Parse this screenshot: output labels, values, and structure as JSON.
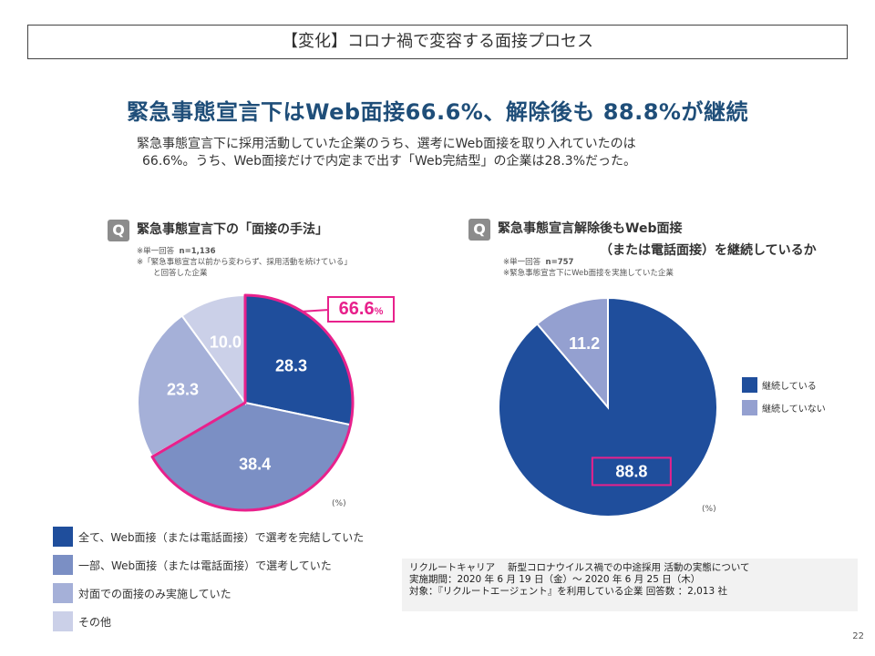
{
  "slide": {
    "title": "【変化】コロナ禍で変容する面接プロセス",
    "headline": "緊急事態宣言下はWeb面接66.6%、解除後も 88.8%が継続",
    "lead_line1": "緊急事態宣言下に採用活動していた企業のうち、選考にWeb面接を取り入れていたのは",
    "lead_line2": "66.6%。うち、Web面接だけで内定まで出す「Web完結型」の企業は28.3%だった。",
    "page_number": "22"
  },
  "left_panel": {
    "q_badge": "Q",
    "title": "緊急事態宣言下の「面接の手法」",
    "note_line1": "※単一回答",
    "note_n": "n=1,136",
    "note_line2": "※「緊急事態宣言以前から変わらず、採用活動を続けている」",
    "note_line3": "と回答した企業",
    "callout_value": "66.6",
    "callout_unit": "%",
    "unit": "(%)"
  },
  "right_panel": {
    "q_badge": "Q",
    "title_line1": "緊急事態宣言解除後もWeb面接",
    "title_line2": "（または電話面接）を継続しているか",
    "note_line1": "※単一回答",
    "note_n": "n=757",
    "note_line2": "※緊急事態宣言下にWeb面接を実施していた企業",
    "unit": "(%)"
  },
  "chart_data": [
    {
      "type": "pie",
      "title": "緊急事態宣言下の「面接の手法」",
      "slices": [
        {
          "label": "全て、Web面接（または電話面接）で選考を完結していた",
          "value": 28.3,
          "display": "28.3",
          "color": "#1f4e9c"
        },
        {
          "label": "一部、Web面接（または電話面接）で選考していた",
          "value": 38.4,
          "display": "38.4",
          "color": "#7b8fc4"
        },
        {
          "label": "対面での面接のみ実施していた",
          "value": 23.3,
          "display": "23.3",
          "color": "#a5b0d8"
        },
        {
          "label": "その他",
          "value": 10.0,
          "display": "10.0",
          "color": "#cbd0e8"
        }
      ],
      "highlight": {
        "value": 66.6,
        "color": "#e8218c"
      },
      "unit": "(%)"
    },
    {
      "type": "pie",
      "title": "緊急事態宣言解除後もWeb面接（または電話面接）を継続しているか",
      "slices": [
        {
          "label": "継続している",
          "value": 88.8,
          "display": "88.8",
          "color": "#1f4e9c"
        },
        {
          "label": "継続していない",
          "value": 11.2,
          "display": "11.2",
          "color": "#94a0d0"
        }
      ],
      "highlight": {
        "value": 88.8,
        "color": "#e8218c"
      },
      "unit": "(%)"
    }
  ],
  "legend_left": [
    {
      "label": "全て、Web面接（または電話面接）で選考を完結していた",
      "color": "#1f4e9c"
    },
    {
      "label": "一部、Web面接（または電話面接）で選考していた",
      "color": "#7b8fc4"
    },
    {
      "label": "対面での面接のみ実施していた",
      "color": "#a5b0d8"
    },
    {
      "label": "その他",
      "color": "#cbd0e8"
    }
  ],
  "legend_right": [
    {
      "label": "継続している",
      "color": "#1f4e9c"
    },
    {
      "label": "継続していない",
      "color": "#94a0d0"
    }
  ],
  "source": {
    "line1": "リクルートキャリア　 新型コロナウイルス禍での中途採用 活動の実態について",
    "line2": "実施期間：2020 年 6 月 19 日（金）～ 2020 年 6 月 25 日（木）",
    "line3": "対象：『リクルートエージェント』を利用している企業 回答数 ：2,013 社"
  }
}
